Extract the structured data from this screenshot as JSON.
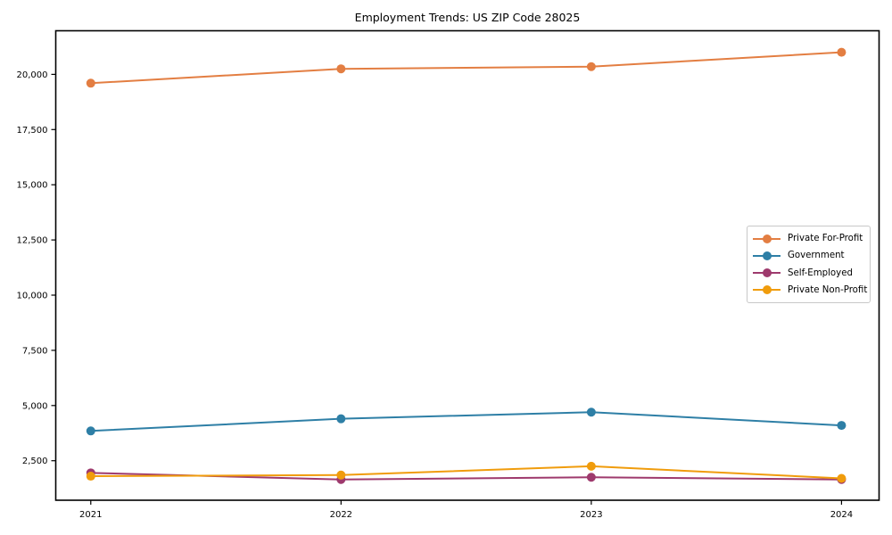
{
  "chart_data": {
    "type": "line",
    "title": "Employment Trends: US ZIP Code 28025",
    "xlabel": "",
    "ylabel": "",
    "x": [
      2021,
      2022,
      2023,
      2024
    ],
    "x_labels": [
      "2021",
      "2022",
      "2023",
      "2024"
    ],
    "y_ticks": [
      2500,
      5000,
      7500,
      10000,
      12500,
      15000,
      17500,
      20000
    ],
    "y_tick_labels": [
      "2,500",
      "5,000",
      "7,500",
      "10,000",
      "12,500",
      "15,000",
      "17,500",
      "20,000"
    ],
    "xlim": [
      2020.86,
      2024.15
    ],
    "ylim": [
      711,
      21975
    ],
    "grid": false,
    "marker": "circle",
    "line_width": 2,
    "legend_position": "center-right",
    "axis_color": "#000000",
    "series": [
      {
        "name": "Private For-Profit",
        "color": "#e37e42",
        "values": [
          19600,
          20250,
          20350,
          21000
        ]
      },
      {
        "name": "Government",
        "color": "#2e7fa6",
        "values": [
          3850,
          4400,
          4700,
          4100
        ]
      },
      {
        "name": "Self-Employed",
        "color": "#9e3a6d",
        "values": [
          1950,
          1650,
          1750,
          1650
        ]
      },
      {
        "name": "Private Non-Profit",
        "color": "#f09c0c",
        "values": [
          1800,
          1850,
          2250,
          1700
        ]
      }
    ]
  }
}
